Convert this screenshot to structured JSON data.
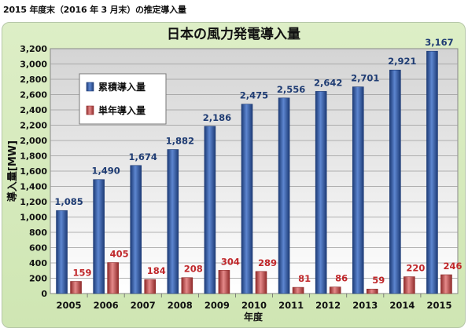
{
  "caption": "2015 年度末（2016 年 3 月末）の推定導入量",
  "chart_data": {
    "type": "bar",
    "title": "日本の風力発電導入量",
    "xlabel": "年度",
    "ylabel": "導入量[MW]",
    "categories": [
      "2005",
      "2006",
      "2007",
      "2008",
      "2009",
      "2010",
      "2011",
      "2012",
      "2013",
      "2014",
      "2015"
    ],
    "series": [
      {
        "name": "累積導入量",
        "color": "#2a4f97",
        "label_color": "#1f3c73",
        "values": [
          1085,
          1490,
          1674,
          1882,
          2186,
          2475,
          2556,
          2642,
          2701,
          2921,
          3167
        ],
        "labels": [
          "1,085",
          "1,490",
          "1,674",
          "1,882",
          "2,186",
          "2,475",
          "2,556",
          "2,642",
          "2,701",
          "2,921",
          "3,167"
        ]
      },
      {
        "name": "単年導入量",
        "color": "#c04545",
        "label_color": "#c0282b",
        "values": [
          159,
          405,
          184,
          208,
          304,
          289,
          81,
          86,
          59,
          220,
          246
        ],
        "labels": [
          "159",
          "405",
          "184",
          "208",
          "304",
          "289",
          "81",
          "86",
          "59",
          "220",
          "246"
        ]
      }
    ],
    "ylim": [
      0,
      3200
    ],
    "yticks": [
      "0",
      "200",
      "400",
      "600",
      "800",
      "1,000",
      "1,200",
      "1,400",
      "1,600",
      "1,800",
      "2,000",
      "2,200",
      "2,400",
      "2,600",
      "2,800",
      "3,000",
      "3,200"
    ],
    "grid": true,
    "legend_position": "top-left"
  }
}
